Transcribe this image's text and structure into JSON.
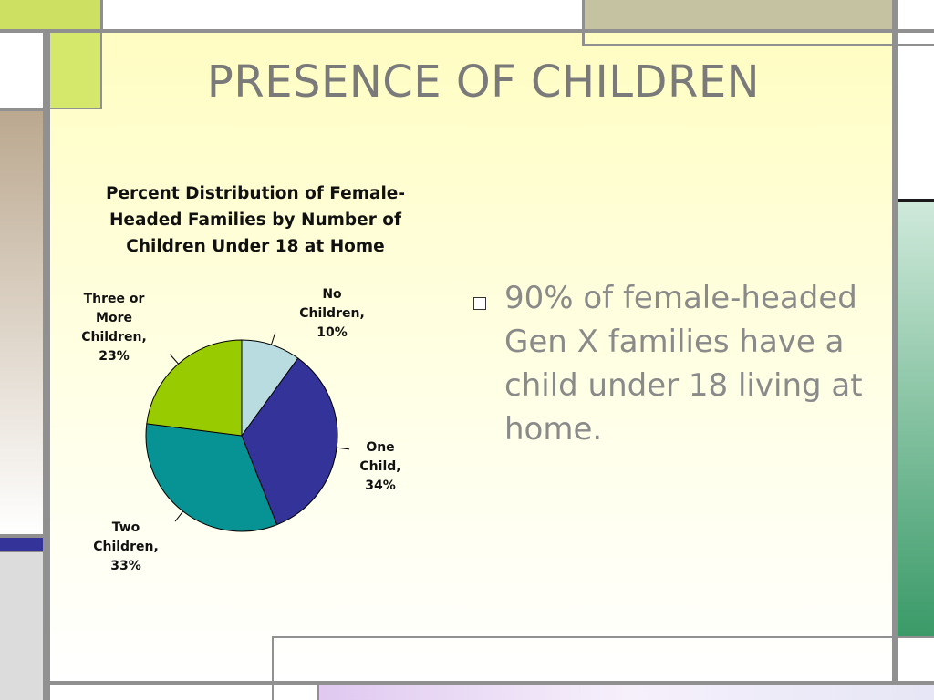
{
  "slide": {
    "title": "PRESENCE OF CHILDREN",
    "bullet": "90% of female-headed Gen X families have a child under 18 living at home."
  },
  "colors": {
    "accent_green": "#cde062",
    "accent_tan": "#c5c2a2",
    "accent_navy": "#33339a",
    "accent_teal": "#3a9a68",
    "frame_gray": "#909090"
  },
  "chart_data": {
    "type": "pie",
    "title": "Percent Distribution of Female-Headed Families by Number of Children Under 18 at Home",
    "unit": "%",
    "slices": [
      {
        "name": "No Children",
        "value": 10,
        "label_lines": [
          "No",
          "Children,",
          "10%"
        ],
        "color": "#b9dce1"
      },
      {
        "name": "One Child",
        "value": 34,
        "label_lines": [
          "One",
          "Child,",
          "34%"
        ],
        "color": "#33339a"
      },
      {
        "name": "Two Children",
        "value": 33,
        "label_lines": [
          "Two",
          "Children,",
          "33%"
        ],
        "color": "#079393"
      },
      {
        "name": "Three or More Children",
        "value": 23,
        "label_lines": [
          "Three or",
          "More",
          "Children,",
          "23%"
        ],
        "color": "#99cc00"
      }
    ],
    "start_angle_deg": 0,
    "direction": "clockwise"
  }
}
